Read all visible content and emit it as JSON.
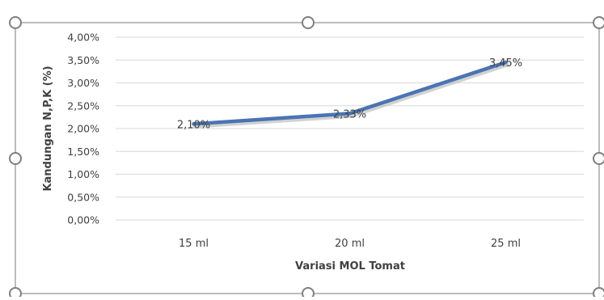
{
  "chart_data": {
    "type": "line",
    "categories": [
      "15 ml",
      "20 ml",
      "25 ml"
    ],
    "series": [
      {
        "values": [
          2.1,
          2.33,
          3.45
        ],
        "labels": [
          "2,10%",
          "2,33%",
          "3,45%"
        ],
        "color": "#4a74b4"
      }
    ],
    "xlabel": "Variasi MOL Tomat",
    "ylabel": "Kandungan N,P,K (%)",
    "ylim": [
      0,
      4
    ],
    "yticks": [
      0,
      0.5,
      1,
      1.5,
      2,
      2.5,
      3,
      3.5,
      4
    ],
    "ytick_labels": [
      "0,00%",
      "0,50%",
      "1,00%",
      "1,50%",
      "2,00%",
      "2,50%",
      "3,00%",
      "3,50%",
      "4,00%"
    ],
    "grid": true,
    "legend": "none"
  },
  "colors": {
    "gridline": "#d9d9d9",
    "frame": "#a6a6a6",
    "handle_stroke": "#7f7f7f",
    "text": "#404040",
    "line_shadow": "#bfbfbf"
  }
}
